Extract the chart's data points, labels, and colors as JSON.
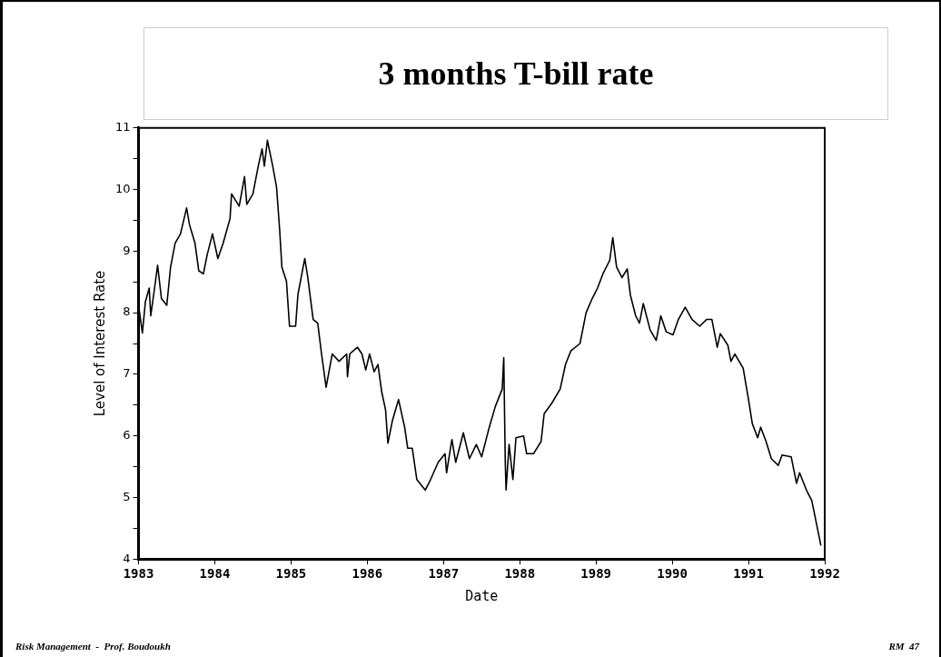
{
  "chart_data": {
    "type": "line",
    "title": "3 months T-bill rate",
    "xlabel": "Date",
    "ylabel": "Level of Interest Rate",
    "annotations": [
      "Risk Management  -  Prof. Boudoukh",
      "RM  47"
    ],
    "x": [
      1983.0,
      1983.05,
      1983.09,
      1983.14,
      1983.16,
      1983.21,
      1983.25,
      1983.3,
      1983.37,
      1983.42,
      1983.48,
      1983.55,
      1983.63,
      1983.67,
      1983.74,
      1983.79,
      1983.85,
      1983.9,
      1983.97,
      1984.04,
      1984.11,
      1984.2,
      1984.22,
      1984.32,
      1984.39,
      1984.42,
      1984.5,
      1984.57,
      1984.62,
      1984.65,
      1984.69,
      1984.76,
      1984.81,
      1984.85,
      1984.88,
      1984.94,
      1984.98,
      1985.06,
      1985.09,
      1985.18,
      1985.22,
      1985.29,
      1985.35,
      1985.4,
      1985.46,
      1985.54,
      1985.63,
      1985.73,
      1985.74,
      1985.77,
      1985.87,
      1985.93,
      1985.98,
      1986.03,
      1986.09,
      1986.14,
      1986.19,
      1986.24,
      1986.27,
      1986.33,
      1986.41,
      1986.49,
      1986.53,
      1986.59,
      1986.65,
      1986.76,
      1986.83,
      1986.93,
      1987.02,
      1987.04,
      1987.11,
      1987.16,
      1987.26,
      1987.34,
      1987.43,
      1987.5,
      1987.6,
      1987.68,
      1987.77,
      1987.79,
      1987.81,
      1987.82,
      1987.86,
      1987.91,
      1987.95,
      1988.05,
      1988.09,
      1988.18,
      1988.28,
      1988.32,
      1988.42,
      1988.53,
      1988.6,
      1988.67,
      1988.79,
      1988.87,
      1988.95,
      1989.02,
      1989.09,
      1989.18,
      1989.22,
      1989.27,
      1989.34,
      1989.41,
      1989.45,
      1989.52,
      1989.57,
      1989.62,
      1989.71,
      1989.79,
      1989.85,
      1989.92,
      1990.01,
      1990.08,
      1990.17,
      1990.26,
      1990.36,
      1990.45,
      1990.52,
      1990.59,
      1990.63,
      1990.73,
      1990.77,
      1990.82,
      1990.93,
      1991.0,
      1991.05,
      1991.12,
      1991.16,
      1991.23,
      1991.3,
      1991.39,
      1991.44,
      1991.56,
      1991.63,
      1991.67,
      1991.76,
      1991.83,
      1991.95
    ],
    "series": [
      {
        "color": "#000000",
        "values": [
          8.12,
          7.67,
          8.18,
          8.4,
          7.95,
          8.4,
          8.77,
          8.23,
          8.12,
          8.74,
          9.13,
          9.28,
          9.7,
          9.42,
          9.13,
          8.68,
          8.63,
          8.94,
          9.28,
          8.88,
          9.13,
          9.53,
          9.93,
          9.73,
          10.21,
          9.76,
          9.93,
          10.38,
          10.66,
          10.38,
          10.8,
          10.38,
          10.04,
          9.36,
          8.74,
          8.51,
          7.78,
          7.78,
          8.29,
          8.88,
          8.57,
          7.89,
          7.83,
          7.33,
          6.79,
          7.33,
          7.21,
          7.33,
          6.96,
          7.33,
          7.44,
          7.33,
          7.07,
          7.33,
          7.04,
          7.16,
          6.71,
          6.42,
          5.88,
          6.25,
          6.59,
          6.14,
          5.8,
          5.8,
          5.29,
          5.12,
          5.29,
          5.57,
          5.71,
          5.4,
          5.94,
          5.57,
          6.05,
          5.63,
          5.86,
          5.66,
          6.14,
          6.48,
          6.76,
          7.27,
          5.57,
          5.12,
          5.86,
          5.29,
          5.97,
          6.0,
          5.71,
          5.71,
          5.91,
          6.36,
          6.53,
          6.76,
          7.16,
          7.38,
          7.5,
          8.0,
          8.23,
          8.4,
          8.63,
          8.85,
          9.22,
          8.74,
          8.57,
          8.71,
          8.29,
          7.95,
          7.83,
          8.15,
          7.72,
          7.55,
          7.95,
          7.69,
          7.64,
          7.89,
          8.09,
          7.89,
          7.78,
          7.89,
          7.89,
          7.44,
          7.66,
          7.47,
          7.21,
          7.33,
          7.1,
          6.59,
          6.2,
          5.97,
          6.14,
          5.91,
          5.63,
          5.52,
          5.69,
          5.66,
          5.23,
          5.4,
          5.12,
          4.95,
          4.22
        ]
      }
    ],
    "xlim": [
      1983,
      1992
    ],
    "xticks": [
      1983,
      1984,
      1985,
      1986,
      1987,
      1988,
      1989,
      1990,
      1991,
      1992
    ],
    "ylim": [
      4,
      11
    ],
    "yticks": [
      4,
      {
        "value": 4.5,
        "label": null
      },
      5,
      {
        "value": 5.5,
        "label": null
      },
      6,
      {
        "value": 6.5,
        "label": null
      },
      7,
      {
        "value": 7.5,
        "label": null
      },
      8,
      {
        "value": 8.5,
        "label": null
      },
      9,
      {
        "value": 9.5,
        "label": null
      },
      10,
      {
        "value": 10.5,
        "label": null
      },
      11
    ],
    "grid": false,
    "legend": false,
    "marker": "none",
    "line_style": "solid"
  }
}
